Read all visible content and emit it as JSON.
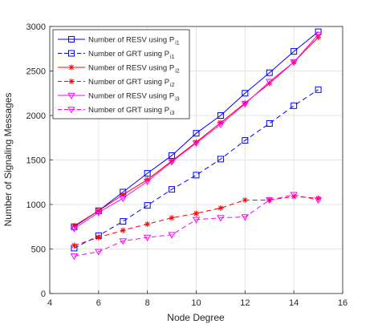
{
  "chart_data": {
    "type": "line",
    "title": "",
    "xlabel": "Node Degree",
    "ylabel": "Number of Signaling Messages",
    "xlim": [
      4,
      16
    ],
    "ylim": [
      0,
      3000
    ],
    "xticks": [
      4,
      6,
      8,
      10,
      12,
      14,
      16
    ],
    "yticks": [
      0,
      500,
      1000,
      1500,
      2000,
      2500,
      3000
    ],
    "grid": true,
    "legend_position": "top-left",
    "x": [
      5,
      6,
      7,
      8,
      9,
      10,
      11,
      12,
      13,
      14,
      15
    ],
    "series": [
      {
        "name_main": "Number of RESV using P",
        "name_sub": "i1",
        "color": "#0000ff",
        "dashed": false,
        "marker": "square",
        "values": [
          750,
          930,
          1140,
          1350,
          1550,
          1800,
          2000,
          2250,
          2480,
          2720,
          2940
        ]
      },
      {
        "name_main": "Number of GRT using P",
        "name_sub": "i1",
        "color": "#0000ff",
        "dashed": true,
        "marker": "square",
        "values": [
          510,
          650,
          810,
          990,
          1170,
          1330,
          1510,
          1720,
          1910,
          2110,
          2290
        ]
      },
      {
        "name_main": "Number of RESV using P",
        "name_sub": "i2",
        "color": "#ff0000",
        "dashed": false,
        "marker": "star",
        "values": [
          760,
          930,
          1110,
          1280,
          1490,
          1700,
          1920,
          2140,
          2360,
          2600,
          2880
        ]
      },
      {
        "name_main": "Number of GRT using P",
        "name_sub": "i2",
        "color": "#ff0000",
        "dashed": true,
        "marker": "star",
        "values": [
          540,
          630,
          710,
          780,
          850,
          900,
          960,
          1050,
          1050,
          1090,
          1070
        ]
      },
      {
        "name_main": "Number of RESV using P",
        "name_sub": "i3",
        "color": "#ff00ff",
        "dashed": false,
        "marker": "triangle-down",
        "values": [
          730,
          910,
          1070,
          1260,
          1480,
          1690,
          1900,
          2130,
          2380,
          2600,
          2910
        ]
      },
      {
        "name_main": "Number of GRT using P",
        "name_sub": "i3",
        "color": "#ff00ff",
        "dashed": true,
        "marker": "triangle-down",
        "values": [
          420,
          470,
          590,
          630,
          660,
          830,
          850,
          860,
          1050,
          1110,
          1050
        ]
      }
    ]
  }
}
